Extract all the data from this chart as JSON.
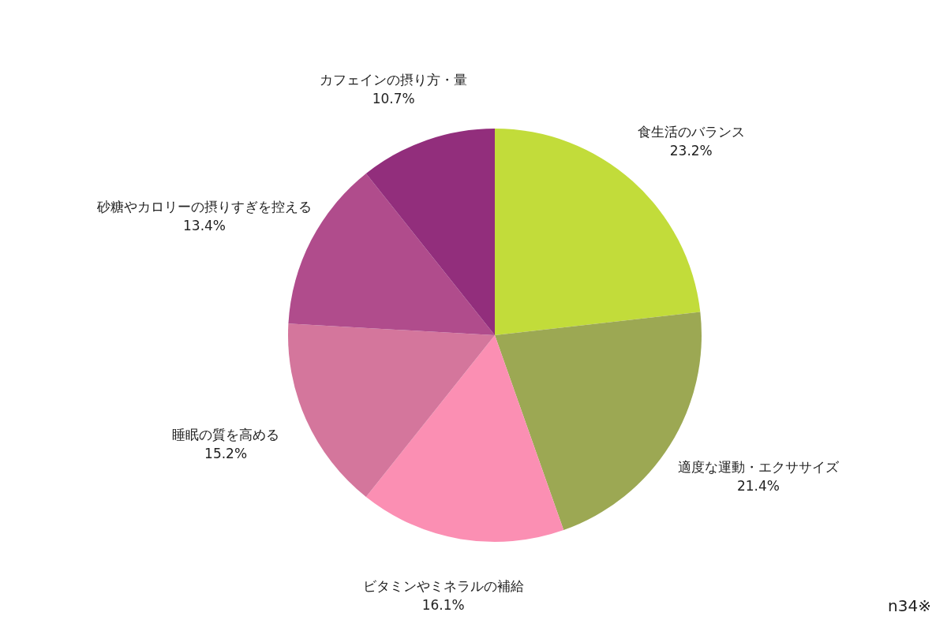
{
  "chart_data": {
    "type": "pie",
    "categories": [
      "食生活のバランス",
      "適度な運動・エクササイズ",
      "ビタミンやミネラルの補給",
      "睡眠の質を高める",
      "砂糖やカロリーの摂りすぎを控える",
      "カフェインの摂り方・量"
    ],
    "values": [
      23.2,
      21.4,
      16.1,
      15.2,
      13.4,
      10.7
    ],
    "colors": [
      "#c2dc3a",
      "#9ca853",
      "#fb8fb3",
      "#d4769c",
      "#b04c8c",
      "#922e7c"
    ],
    "value_labels": [
      "23.2%",
      "21.4%",
      "16.1%",
      "15.2%",
      "13.4%",
      "10.7%"
    ],
    "annotations": [
      "n34※"
    ]
  }
}
